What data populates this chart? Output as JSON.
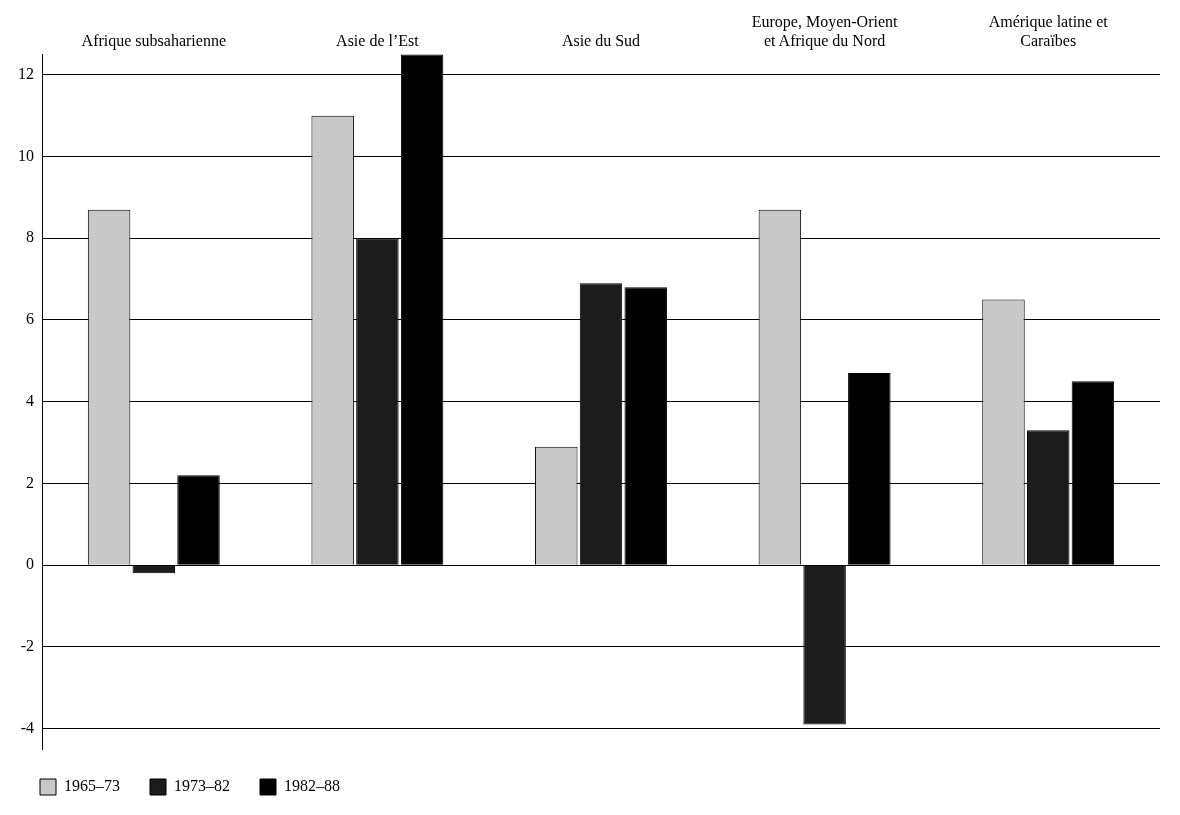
{
  "chart_data": {
    "type": "bar",
    "categories": [
      "Afrique subsaharienne",
      "Asie de l’Est",
      "Asie du Sud",
      "Europe, Moyen-Orient et Afrique du Nord",
      "Amérique latine et Caraïbes"
    ],
    "series": [
      {
        "name": "1965–73",
        "color": "#c8c8c8",
        "values": [
          8.7,
          11.0,
          2.9,
          8.7,
          6.5
        ]
      },
      {
        "name": "1973–82",
        "color": "#1c1c1c",
        "values": [
          -0.2,
          8.0,
          6.9,
          -3.9,
          3.3
        ]
      },
      {
        "name": "1982–88",
        "color": "#000000",
        "values": [
          2.2,
          12.5,
          6.8,
          4.7,
          4.5
        ]
      }
    ],
    "ylim": [
      -4.5,
      12.5
    ],
    "yticks": [
      -4,
      -2,
      0,
      2,
      4,
      6,
      8,
      10,
      12
    ],
    "grid": "y",
    "legend": "bottom left"
  }
}
